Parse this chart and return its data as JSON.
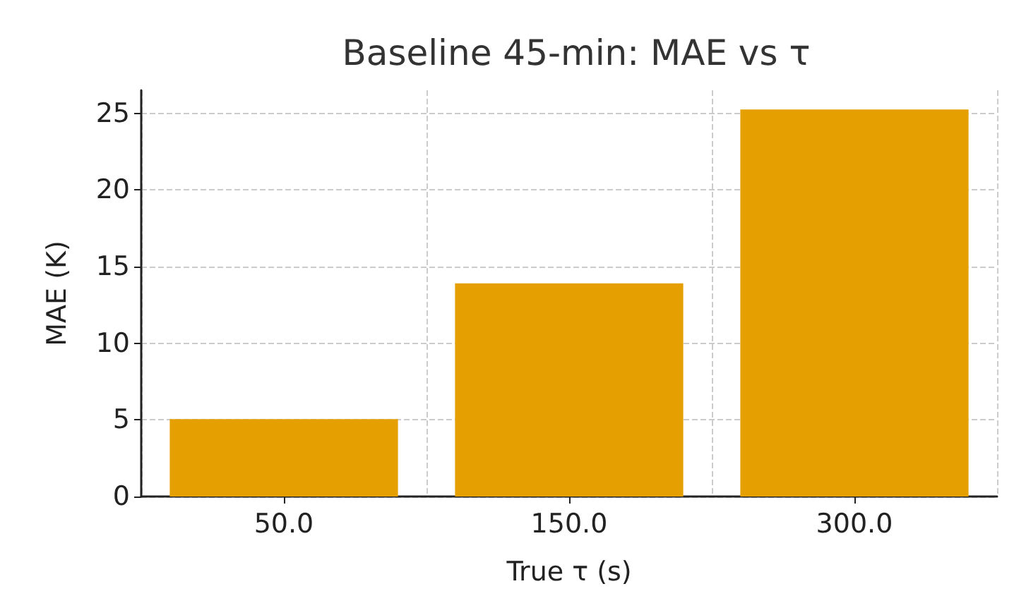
{
  "chart_data": {
    "type": "bar",
    "title": "Baseline 45-min: MAE vs τ",
    "xlabel": "True τ (s)",
    "ylabel": "MAE (K)",
    "categories": [
      "50.0",
      "150.0",
      "300.0"
    ],
    "values": [
      5.05,
      13.9,
      25.25
    ],
    "color": "#e69f00",
    "ylim": [
      0,
      26.5
    ],
    "yticks": [
      0,
      5,
      10,
      15,
      20,
      25
    ],
    "grid": true
  }
}
